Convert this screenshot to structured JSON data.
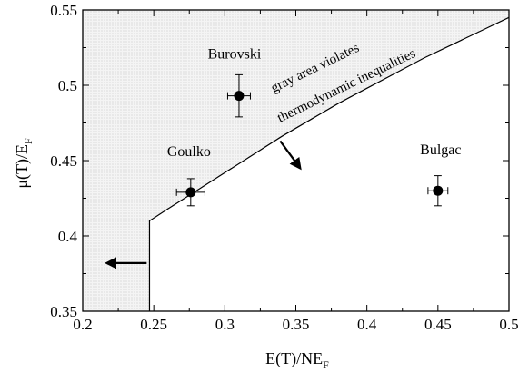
{
  "chart_data": {
    "type": "scatter",
    "title": "",
    "xlabel": {
      "main": "E(T)/NE",
      "sub": "F"
    },
    "ylabel": {
      "main": "μ(T)/E",
      "sub": "F"
    },
    "xlim": [
      0.2,
      0.5
    ],
    "ylim": [
      0.35,
      0.55
    ],
    "x_ticks": [
      0.2,
      0.25,
      0.3,
      0.35,
      0.4,
      0.45,
      0.5
    ],
    "x_tick_labels": [
      "0.2",
      "0.25",
      "0.3",
      "0.35",
      "0.4",
      "0.45",
      "0.5"
    ],
    "y_ticks": [
      0.35,
      0.4,
      0.45,
      0.5,
      0.55
    ],
    "y_tick_labels": [
      "0.35",
      "0.4",
      "0.45",
      "0.5",
      "0.55"
    ],
    "grid": false,
    "points": [
      {
        "label": "Burovski",
        "x": 0.31,
        "y": 0.493,
        "xerr": 0.008,
        "yerr": 0.014
      },
      {
        "label": "Goulko",
        "x": 0.276,
        "y": 0.429,
        "xerr": 0.01,
        "yerr": 0.009
      },
      {
        "label": "Bulgac",
        "x": 0.45,
        "y": 0.43,
        "xerr": 0.007,
        "yerr": 0.01
      }
    ],
    "boundary": {
      "x": [
        0.247,
        0.247,
        0.26,
        0.28,
        0.3,
        0.32,
        0.34,
        0.36,
        0.38,
        0.4,
        0.42,
        0.44,
        0.46,
        0.48,
        0.5
      ],
      "y": [
        0.35,
        0.41,
        0.418,
        0.43,
        0.442,
        0.454,
        0.466,
        0.477,
        0.488,
        0.498,
        0.508,
        0.518,
        0.527,
        0.536,
        0.545
      ]
    },
    "shaded_region_color": "#e6e6e6",
    "annotations": {
      "line1": "gray area violates",
      "line2": "thermodynamic inequalities"
    },
    "arrows": [
      {
        "from": [
          0.339,
          0.463
        ],
        "to": [
          0.353,
          0.445
        ]
      },
      {
        "from": [
          0.245,
          0.382
        ],
        "to": [
          0.217,
          0.382
        ]
      }
    ]
  }
}
